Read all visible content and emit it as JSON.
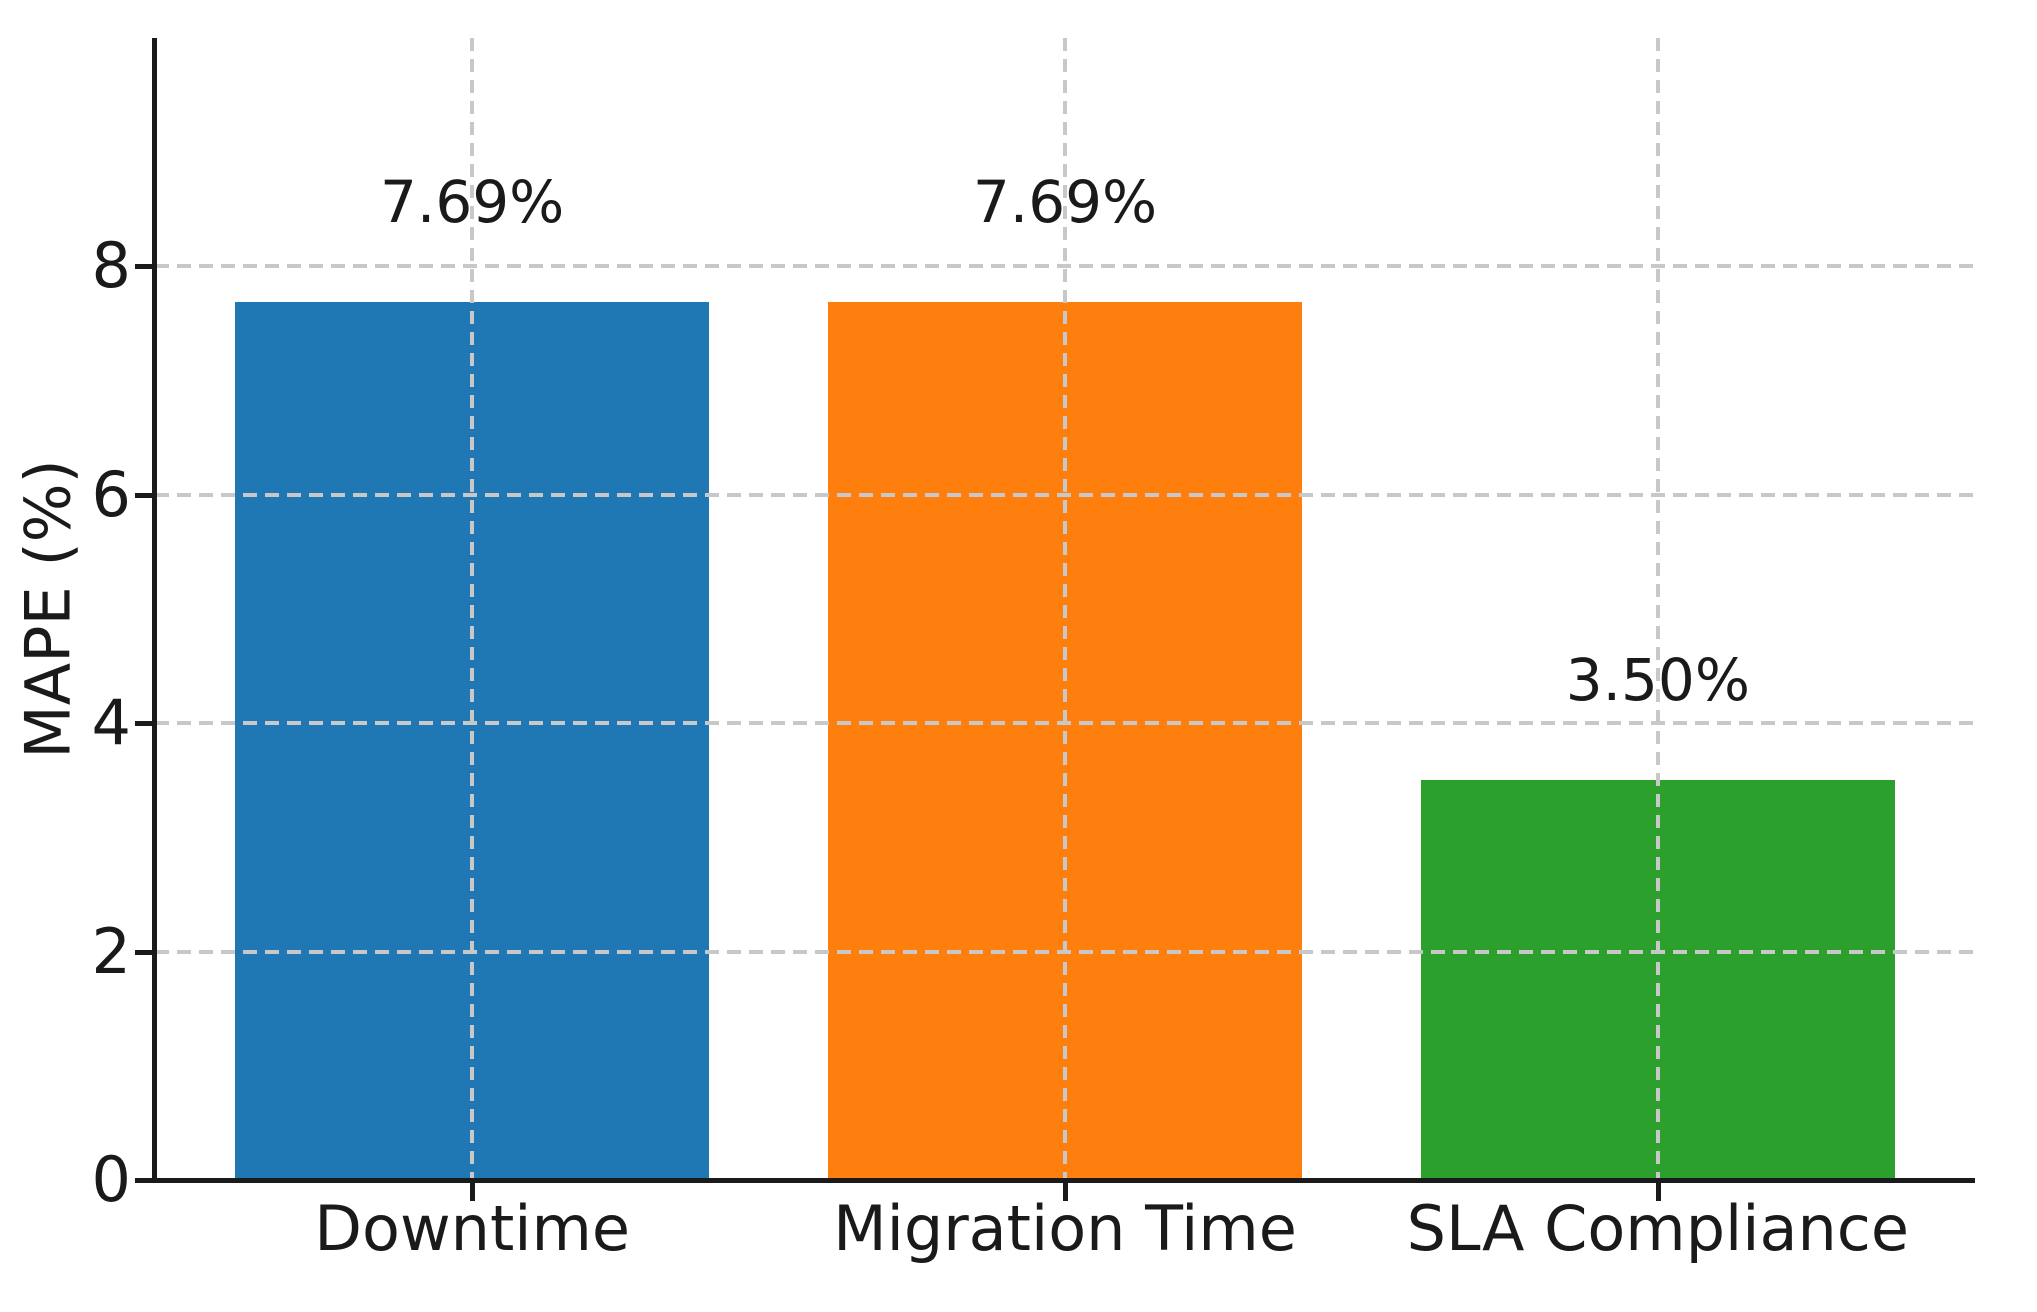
{
  "chart_data": {
    "type": "bar",
    "categories": [
      "Downtime",
      "Migration Time",
      "SLA Compliance"
    ],
    "values": [
      7.69,
      7.69,
      3.5
    ],
    "bar_labels": [
      "7.69%",
      "7.69%",
      "3.50%"
    ],
    "bar_colors": [
      "#1f77b4",
      "#ff7f0e",
      "#2ca02c"
    ],
    "title": "",
    "xlabel": "",
    "ylabel": "MAPE (%)",
    "ylim": [
      0,
      10
    ],
    "yticks": [
      0,
      2,
      4,
      6,
      8
    ],
    "grid": true,
    "grid_style": "dashed",
    "grid_color": "#c8c8c8",
    "axis_color": "#1a1a1a",
    "text_color": "#1a1a1a",
    "background": "#ffffff",
    "legend": null
  }
}
